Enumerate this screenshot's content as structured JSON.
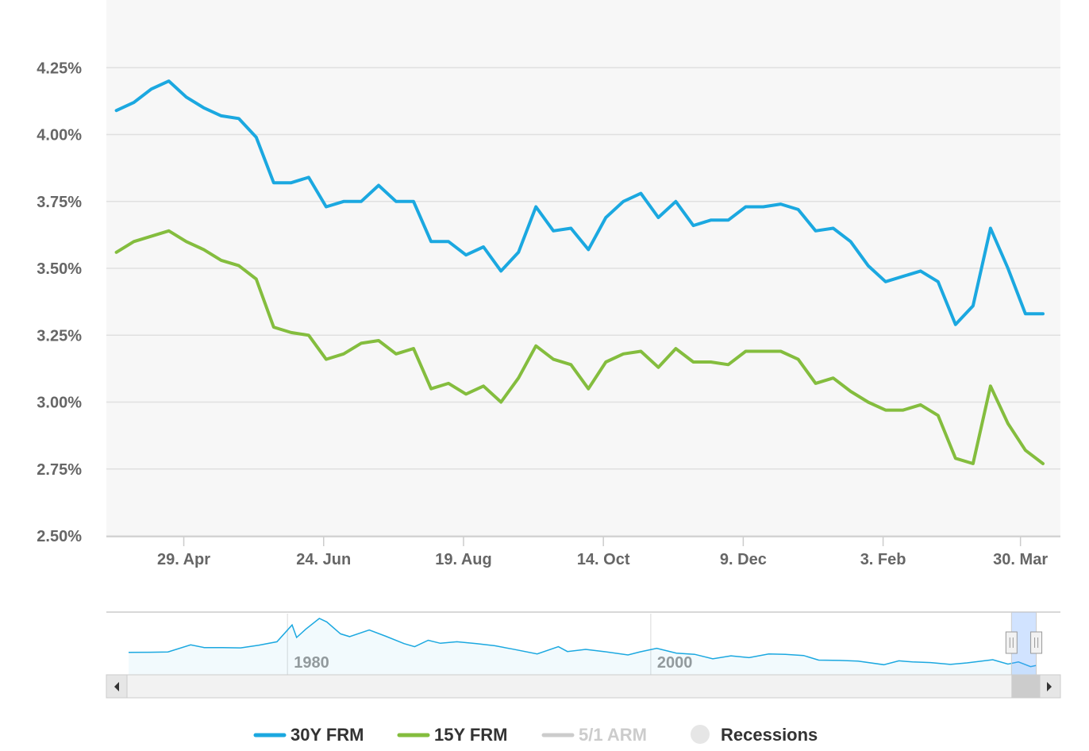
{
  "chart_data": {
    "type": "line",
    "x": [
      "2020-04-02",
      "2020-04-09",
      "2020-04-16",
      "2020-04-23",
      "2020-04-30",
      "2020-05-07",
      "2020-05-14",
      "2020-05-21",
      "2020-05-28",
      "2020-06-04",
      "2020-06-11",
      "2020-06-18",
      "2020-06-25",
      "2020-07-02",
      "2020-07-09",
      "2020-07-16",
      "2020-07-23",
      "2020-07-30",
      "2020-08-06",
      "2020-08-13",
      "2020-08-20",
      "2020-08-27",
      "2020-09-03",
      "2020-09-10",
      "2020-09-17",
      "2020-09-24",
      "2020-10-01",
      "2020-10-08",
      "2020-10-15",
      "2020-10-22",
      "2020-10-29",
      "2020-11-05",
      "2020-11-12",
      "2020-11-19",
      "2020-11-26",
      "2020-12-03",
      "2020-12-10",
      "2020-12-17",
      "2020-12-24",
      "2020-12-31",
      "2021-01-07",
      "2021-01-14",
      "2021-01-21",
      "2021-01-28",
      "2021-02-04",
      "2021-02-11",
      "2021-02-18",
      "2021-02-25",
      "2021-03-04",
      "2021-03-11",
      "2021-03-18",
      "2021-03-25",
      "2021-04-01",
      "2021-04-08"
    ],
    "series": [
      {
        "name": "30Y FRM",
        "color": "#1ba8e0",
        "values": [
          4.09,
          4.12,
          4.17,
          4.2,
          4.14,
          4.1,
          4.07,
          4.06,
          3.99,
          3.82,
          3.82,
          3.84,
          3.73,
          3.75,
          3.75,
          3.81,
          3.75,
          3.75,
          3.6,
          3.6,
          3.55,
          3.58,
          3.49,
          3.56,
          3.73,
          3.64,
          3.65,
          3.57,
          3.69,
          3.75,
          3.78,
          3.69,
          3.75,
          3.66,
          3.68,
          3.68,
          3.73,
          3.73,
          3.74,
          3.72,
          3.64,
          3.65,
          3.6,
          3.51,
          3.45,
          3.47,
          3.49,
          3.45,
          3.29,
          3.36,
          3.65,
          3.5,
          3.33,
          3.33
        ]
      },
      {
        "name": "15Y FRM",
        "color": "#84bd3e",
        "values": [
          3.56,
          3.6,
          3.62,
          3.64,
          3.6,
          3.57,
          3.53,
          3.51,
          3.46,
          3.28,
          3.26,
          3.25,
          3.16,
          3.18,
          3.22,
          3.23,
          3.18,
          3.2,
          3.05,
          3.07,
          3.03,
          3.06,
          3.0,
          3.09,
          3.21,
          3.16,
          3.14,
          3.05,
          3.15,
          3.18,
          3.19,
          3.13,
          3.2,
          3.15,
          3.15,
          3.14,
          3.19,
          3.19,
          3.19,
          3.16,
          3.07,
          3.09,
          3.04,
          3.0,
          2.97,
          2.97,
          2.99,
          2.95,
          2.79,
          2.77,
          3.06,
          2.92,
          2.82,
          2.77
        ]
      }
    ],
    "ylim": [
      2.5,
      4.5
    ],
    "yticks": [
      "2.50%",
      "2.75%",
      "3.00%",
      "3.25%",
      "3.50%",
      "3.75%",
      "4.00%",
      "4.25%"
    ],
    "xticks": [
      {
        "label": "29. Apr",
        "date": "2020-04-29"
      },
      {
        "label": "24. Jun",
        "date": "2020-06-24"
      },
      {
        "label": "19. Aug",
        "date": "2020-08-19"
      },
      {
        "label": "14. Oct",
        "date": "2020-10-14"
      },
      {
        "label": "9. Dec",
        "date": "2020-12-09"
      },
      {
        "label": "3. Feb",
        "date": "2021-02-03"
      },
      {
        "label": "30. Mar",
        "date": "2021-03-30"
      }
    ],
    "grid": true,
    "legend": {
      "placement": "bottom-center",
      "items": [
        {
          "label": "30Y FRM",
          "color": "#1ba8e0",
          "active": true
        },
        {
          "label": "15Y FRM",
          "color": "#84bd3e",
          "active": true
        },
        {
          "label": "5/1 ARM",
          "color": "#cccccc",
          "active": false
        },
        {
          "label": "Recessions",
          "color": "#e6e6e6",
          "active": true
        }
      ]
    },
    "navigator": {
      "labels": [
        "1980",
        "2000"
      ],
      "series_color": "#1ba8e0",
      "series": [
        [
          "1971-04",
          7.33
        ],
        [
          "1972-06",
          7.38
        ],
        [
          "1973-06",
          7.48
        ],
        [
          "1974-09",
          9.8
        ],
        [
          "1975-06",
          8.9
        ],
        [
          "1976-06",
          8.9
        ],
        [
          "1977-06",
          8.8
        ],
        [
          "1978-06",
          9.7
        ],
        [
          "1979-06",
          10.8
        ],
        [
          "1980-04",
          16.3
        ],
        [
          "1980-07",
          12.2
        ],
        [
          "1981-01",
          14.9
        ],
        [
          "1981-10",
          18.45
        ],
        [
          "1982-03",
          17.3
        ],
        [
          "1982-12",
          13.4
        ],
        [
          "1983-06",
          12.5
        ],
        [
          "1984-07",
          14.67
        ],
        [
          "1985-06",
          12.6
        ],
        [
          "1986-06",
          10.2
        ],
        [
          "1987-01",
          9.2
        ],
        [
          "1987-10",
          11.3
        ],
        [
          "1988-06",
          10.3
        ],
        [
          "1989-05",
          10.8
        ],
        [
          "1990-06",
          10.2
        ],
        [
          "1991-06",
          9.5
        ],
        [
          "1992-06",
          8.4
        ],
        [
          "1993-10",
          6.83
        ],
        [
          "1994-12",
          9.2
        ],
        [
          "1995-06",
          7.6
        ],
        [
          "1996-06",
          8.3
        ],
        [
          "1997-06",
          7.6
        ],
        [
          "1998-10",
          6.5
        ],
        [
          "1999-06",
          7.5
        ],
        [
          "2000-05",
          8.64
        ],
        [
          "2001-06",
          7.1
        ],
        [
          "2002-06",
          6.7
        ],
        [
          "2003-06",
          5.21
        ],
        [
          "2004-06",
          6.2
        ],
        [
          "2005-06",
          5.6
        ],
        [
          "2006-07",
          6.8
        ],
        [
          "2007-06",
          6.7
        ],
        [
          "2008-06",
          6.3
        ],
        [
          "2009-04",
          4.8
        ],
        [
          "2010-06",
          4.7
        ],
        [
          "2011-06",
          4.5
        ],
        [
          "2012-11",
          3.31
        ],
        [
          "2013-09",
          4.57
        ],
        [
          "2014-06",
          4.2
        ],
        [
          "2015-06",
          4.0
        ],
        [
          "2016-07",
          3.41
        ],
        [
          "2017-06",
          3.9
        ],
        [
          "2018-11",
          4.94
        ],
        [
          "2019-09",
          3.5
        ],
        [
          "2020-04",
          4.2
        ],
        [
          "2020-12",
          2.67
        ],
        [
          "2021-04",
          3.1
        ]
      ],
      "xlim": [
        "1971-04",
        "2021-04"
      ],
      "ylim": [
        0,
        20
      ],
      "selected_range": [
        "2020-04-02",
        "2021-04-08"
      ]
    }
  }
}
